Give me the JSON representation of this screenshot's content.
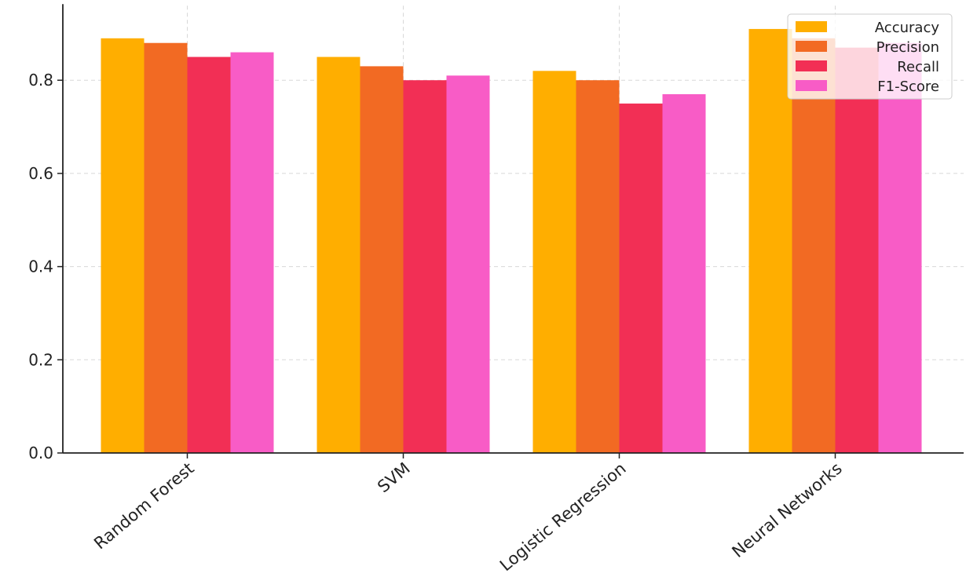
{
  "chart_data": {
    "type": "bar",
    "title": "",
    "xlabel": "",
    "ylabel": "",
    "ylim": [
      0,
      0.96
    ],
    "yticks": [
      "0.0",
      "0.2",
      "0.4",
      "0.6",
      "0.8"
    ],
    "categories": [
      "Random Forest",
      "SVM",
      "Logistic Regression",
      "Neural Networks"
    ],
    "series": [
      {
        "name": "Accuracy",
        "color": "#FFAE00",
        "values": [
          0.89,
          0.85,
          0.82,
          0.91
        ]
      },
      {
        "name": "Precision",
        "color": "#F26A23",
        "values": [
          0.88,
          0.83,
          0.8,
          0.89
        ]
      },
      {
        "name": "Recall",
        "color": "#F22F55",
        "values": [
          0.85,
          0.8,
          0.75,
          0.87
        ]
      },
      {
        "name": "F1-Score",
        "color": "#F85CC6",
        "values": [
          0.86,
          0.81,
          0.77,
          0.88
        ]
      }
    ],
    "grid": true,
    "legend_position": "top-right"
  }
}
